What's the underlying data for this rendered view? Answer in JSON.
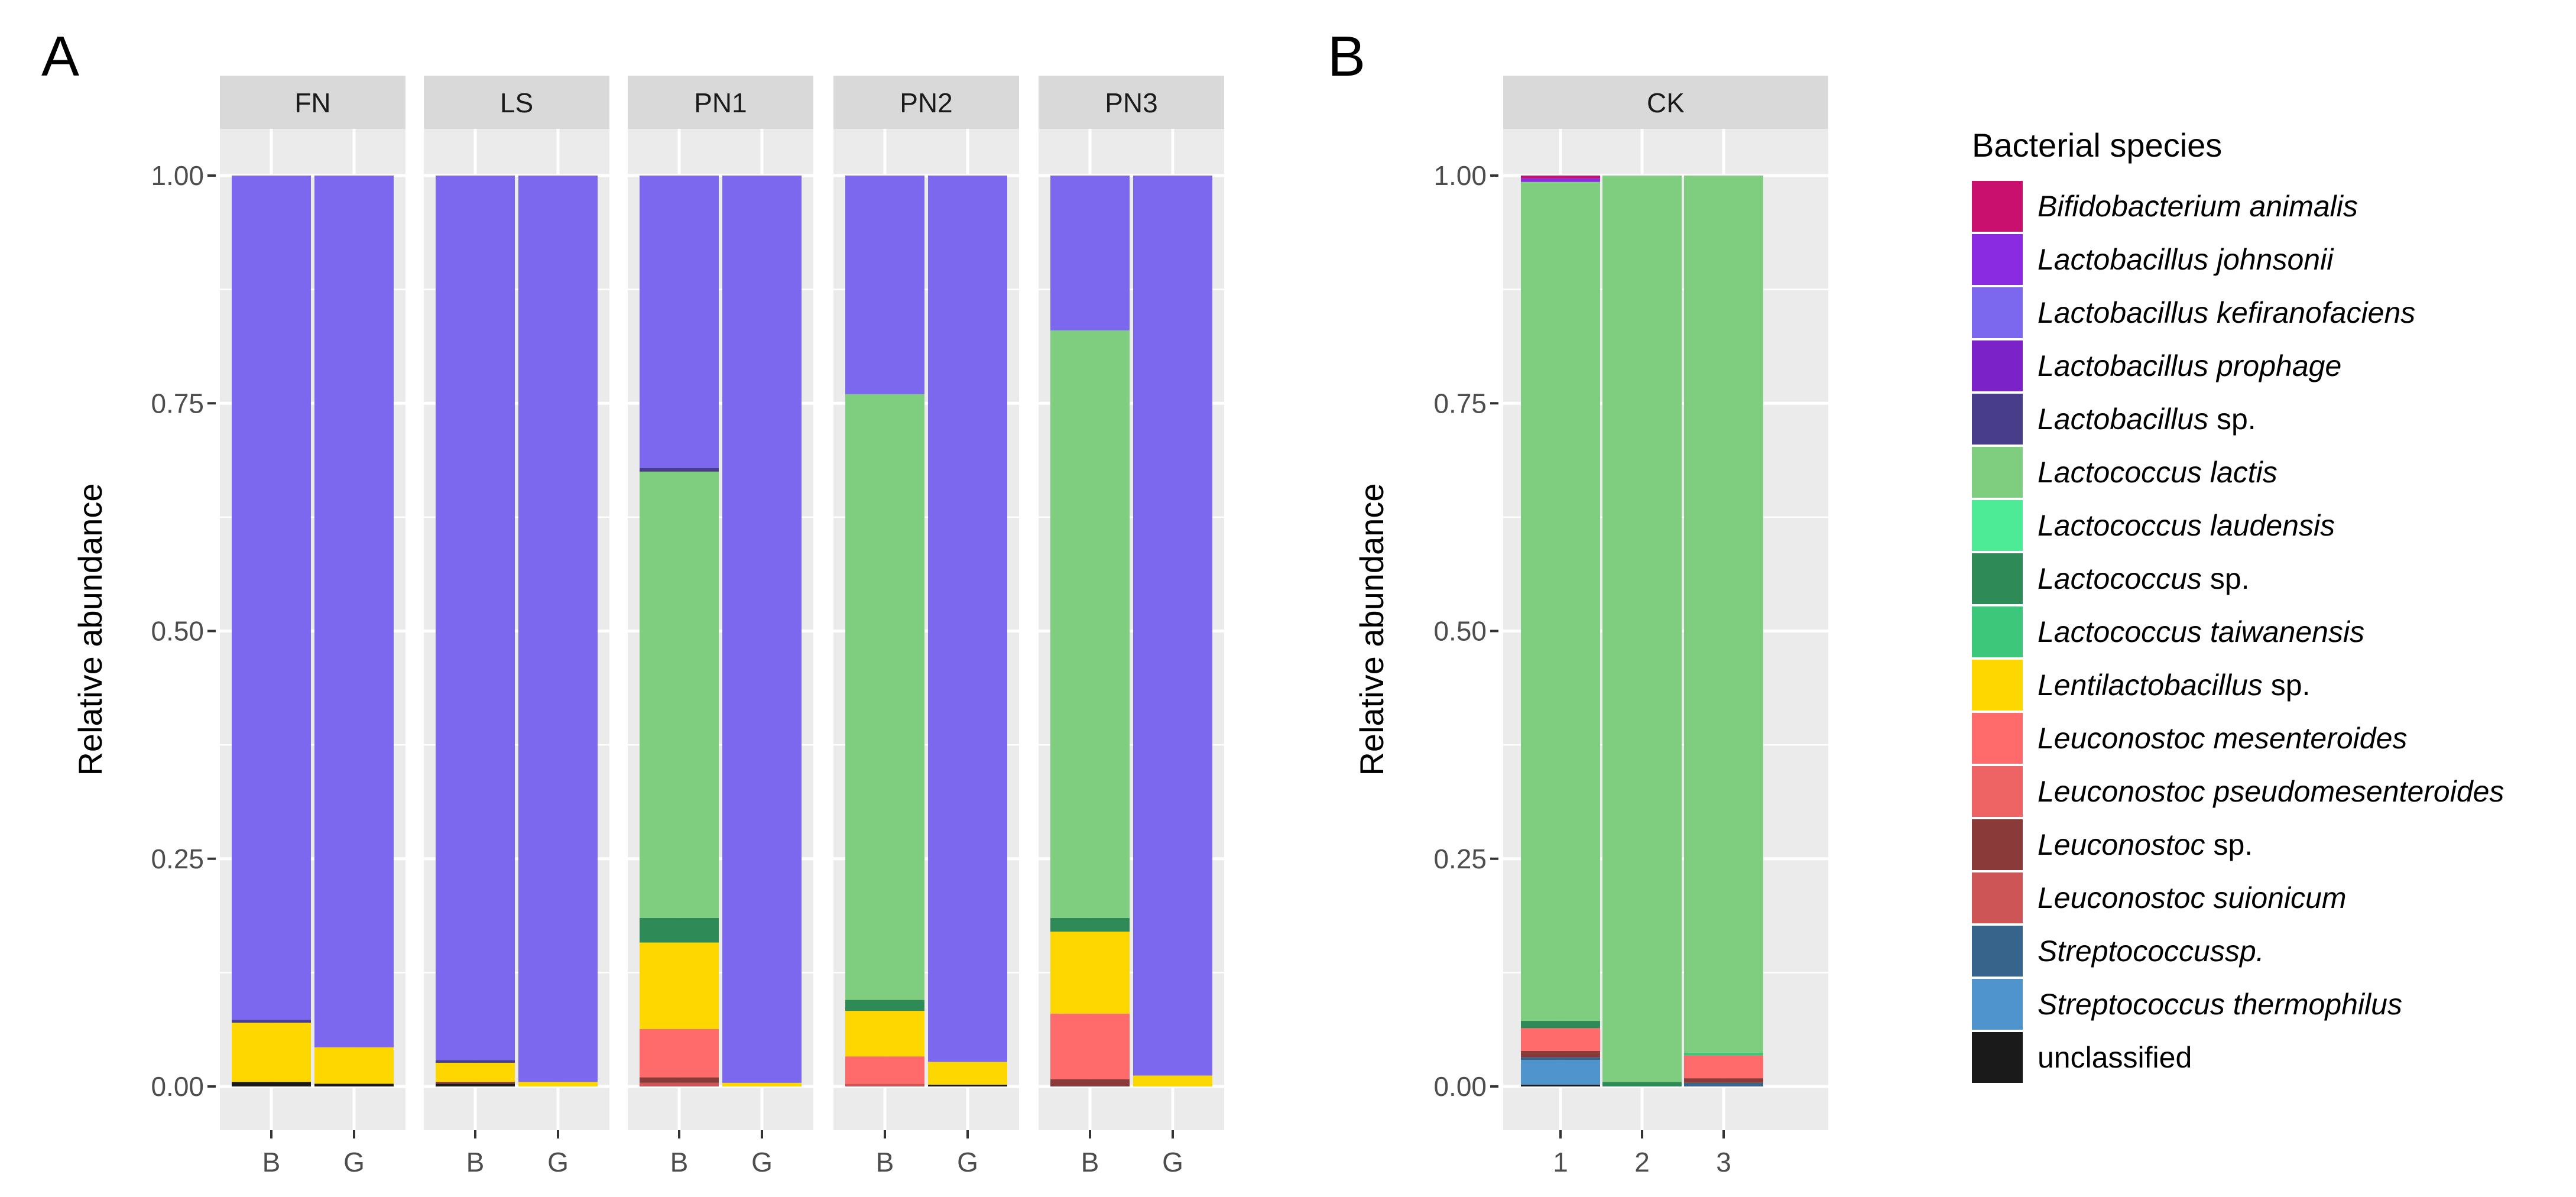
{
  "chart_data": [
    {
      "type": "bar",
      "panel_label": "A",
      "ylabel": "Relative abundance",
      "ylim": [
        0,
        1
      ],
      "yticks": [
        "0.00",
        "0.25",
        "0.50",
        "0.75",
        "1.00"
      ],
      "facets": [
        {
          "name": "FN",
          "bars": [
            {
              "x": "B",
              "values": {
                "unclassified": 0.005,
                "Lactobacillus sp.": 0.003,
                "Lentilactobacillus sp.": 0.065,
                "Lactobacillus kefiranofaciens": 0.927
              }
            },
            {
              "x": "G",
              "values": {
                "unclassified": 0.003,
                "Lentilactobacillus sp.": 0.04,
                "Lactobacillus kefiranofaciens": 0.957
              }
            }
          ]
        },
        {
          "name": "LS",
          "bars": [
            {
              "x": "B",
              "values": {
                "unclassified": 0.003,
                "Leuconostoc sp.": 0.002,
                "Lentilactobacillus sp.": 0.021,
                "Lactobacillus sp.": 0.003,
                "Lactobacillus kefiranofaciens": 0.971
              }
            },
            {
              "x": "G",
              "values": {
                "Lentilactobacillus sp.": 0.005,
                "Lactobacillus kefiranofaciens": 0.995
              }
            }
          ]
        },
        {
          "name": "PN1",
          "bars": [
            {
              "x": "B",
              "values": {
                "Leuconostoc suionicum": 0.004,
                "Leuconostoc sp.": 0.006,
                "Leuconostoc mesenteroides": 0.053,
                "Lentilactobacillus sp.": 0.095,
                "Lactococcus sp.": 0.027,
                "Lactococcus lactis": 0.49,
                "Lactobacillus sp.": 0.004,
                "Lactobacillus kefiranofaciens": 0.321
              }
            },
            {
              "x": "G",
              "values": {
                "Lentilactobacillus sp.": 0.004,
                "Lactobacillus kefiranofaciens": 0.996
              }
            }
          ]
        },
        {
          "name": "PN2",
          "bars": [
            {
              "x": "B",
              "values": {
                "Leuconostoc suionicum": 0.003,
                "Leuconostoc mesenteroides": 0.03,
                "Lentilactobacillus sp.": 0.05,
                "Lactococcus sp.": 0.012,
                "Lactococcus lactis": 0.665,
                "Lactobacillus kefiranofaciens": 0.24
              }
            },
            {
              "x": "G",
              "values": {
                "unclassified": 0.002,
                "Lentilactobacillus sp.": 0.025,
                "Lactobacillus kefiranofaciens": 0.973
              }
            }
          ]
        },
        {
          "name": "PN3",
          "bars": [
            {
              "x": "B",
              "values": {
                "Leuconostoc sp.": 0.008,
                "Leuconostoc mesenteroides": 0.072,
                "Lentilactobacillus sp.": 0.09,
                "Lactococcus sp.": 0.015,
                "Lactococcus lactis": 0.645,
                "Lactobacillus kefiranofaciens": 0.17
              }
            },
            {
              "x": "G",
              "values": {
                "Lentilactobacillus sp.": 0.012,
                "Lactobacillus kefiranofaciens": 0.988
              }
            }
          ]
        }
      ]
    },
    {
      "type": "bar",
      "panel_label": "B",
      "ylabel": "Relative abundance",
      "ylim": [
        0,
        1
      ],
      "yticks": [
        "0.00",
        "0.25",
        "0.50",
        "0.75",
        "1.00"
      ],
      "facets": [
        {
          "name": "CK",
          "bars": [
            {
              "x": "1",
              "values": {
                "unclassified": 0.002,
                "Streptococcus thermophilus": 0.027,
                "Streptococcussp.": 0.003,
                "Leuconostoc sp.": 0.007,
                "Leuconostoc mesenteroides": 0.025,
                "Lactococcus sp.": 0.008,
                "Lactococcus lactis": 0.921,
                "Lactobacillus johnsonii": 0.004,
                "Bifidobacterium animalis": 0.003
              }
            },
            {
              "x": "2",
              "values": {
                "Lactococcus sp.": 0.005,
                "Lactococcus lactis": 0.995
              }
            },
            {
              "x": "3",
              "values": {
                "Streptococcussp.": 0.004,
                "Leuconostoc sp.": 0.005,
                "Leuconostoc mesenteroides": 0.025,
                "Lactococcus taiwanensis": 0.003,
                "Lactococcus lactis": 0.963
              }
            }
          ]
        }
      ]
    }
  ],
  "legend": {
    "title": "Bacterial species",
    "placement": "right",
    "items": [
      {
        "genus": "Bifidobacterium",
        "rest": " animalis",
        "name": "Bifidobacterium animalis",
        "color": "#C9106E"
      },
      {
        "genus": "Lactobacillus",
        "rest": " johnsonii",
        "name": "Lactobacillus johnsonii",
        "color": "#8A2BE2"
      },
      {
        "genus": "Lactobacillus",
        "rest": " kefiranofaciens",
        "name": "Lactobacillus kefiranofaciens",
        "color": "#7B68EE"
      },
      {
        "genus": "Lactobacillus",
        "rest": " prophage",
        "name": "Lactobacillus prophage",
        "color": "#7B22C8"
      },
      {
        "genus": "Lactobacillus",
        "rest": " sp.",
        "name": "Lactobacillus sp.",
        "color": "#483D8B"
      },
      {
        "genus": "Lactococcus",
        "rest": " lactis",
        "name": "Lactococcus lactis",
        "color": "#7FCD7E"
      },
      {
        "genus": "Lactococcus",
        "rest": " laudensis",
        "name": "Lactococcus laudensis",
        "color": "#4EEB97"
      },
      {
        "genus": "Lactococcus",
        "rest": " sp.",
        "name": "Lactococcus sp.",
        "color": "#2E8B57"
      },
      {
        "genus": "Lactococcus",
        "rest": " taiwanensis",
        "name": "Lactococcus taiwanensis",
        "color": "#3CC77A"
      },
      {
        "genus": "Lentilactobacillus",
        "rest": " sp.",
        "name": "Lentilactobacillus sp.",
        "color": "#FFD700"
      },
      {
        "genus": "Leuconostoc",
        "rest": " mesenteroides",
        "name": "Leuconostoc mesenteroides",
        "color": "#FF6A6A"
      },
      {
        "genus": "Leuconostoc",
        "rest": " pseudomesenteroides",
        "name": "Leuconostoc pseudomesenteroides",
        "color": "#EE6363"
      },
      {
        "genus": "Leuconostoc",
        "rest": " sp.",
        "name": "Leuconostoc sp.",
        "color": "#8B3A3A"
      },
      {
        "genus": "Leuconostoc",
        "rest": " suionicum",
        "name": "Leuconostoc suionicum",
        "color": "#CD5555"
      },
      {
        "genus": "Streptococcussp.",
        "rest": "",
        "name": "Streptococcussp.",
        "color": "#36648B"
      },
      {
        "genus": "Streptococcus",
        "rest": " thermophilus",
        "name": "Streptococcus thermophilus",
        "color": "#4F94CD"
      },
      {
        "genus": "",
        "rest": "unclassified",
        "name": "unclassified",
        "color": "#1A1A1A"
      }
    ]
  }
}
